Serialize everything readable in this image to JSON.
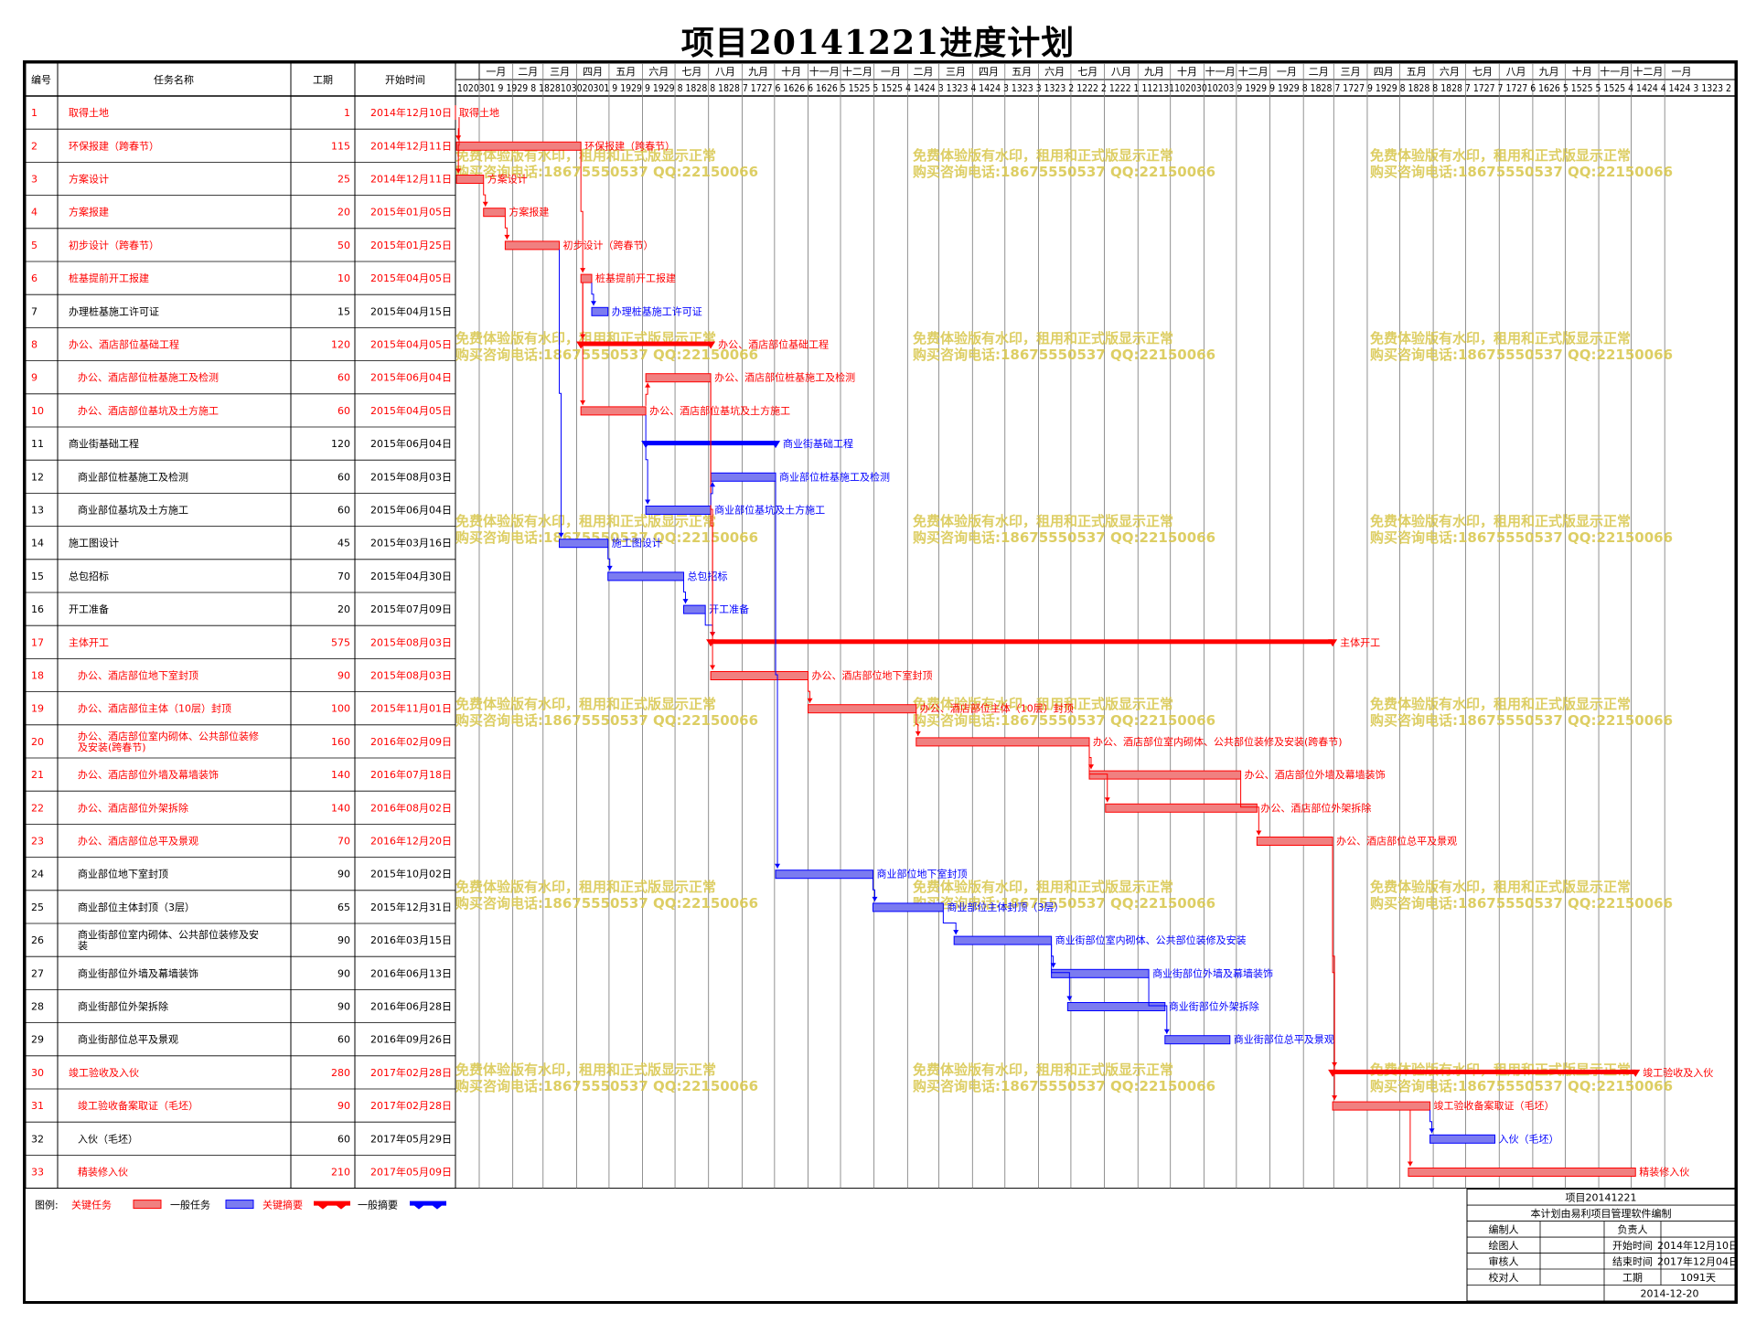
{
  "title": "项目20141221进度计划",
  "columns": {
    "id": "编号",
    "name": "任务名称",
    "duration": "工期",
    "start": "开始时间"
  },
  "timeline": {
    "start_date": "2014-12-10",
    "end_date": "2017-12-04",
    "months": [
      "一月",
      "二月",
      "三月",
      "四月",
      "五月",
      "六月",
      "七月",
      "八月",
      "九月",
      "十月",
      "十一月",
      "十二月",
      "一月",
      "二月",
      "三月",
      "四月",
      "五月",
      "六月",
      "七月",
      "八月",
      "九月",
      "十月",
      "十一月",
      "十二月",
      "一月",
      "二月",
      "三月",
      "四月",
      "五月",
      "六月",
      "七月",
      "八月",
      "九月",
      "十月",
      "十一月",
      "十二月",
      "一月"
    ],
    "day_labels": "1020301 9 1929 8 1828103020301 9 1929 9 1929 8 1828 8 1828 7 1727 6 1626 6 1626 5 1525 5 1525 4 1424 3 1323 4 1424 3 1323 3 1323 2 1222 2 1222 1 11213110203010203 9 1929 9 1929 8 1828 7 1727 9 1929 8 1828 8 1828 7 1727 7 1727 6 1626 5 1525 5 1525 4 1424 4 1424 3 1323 2"
  },
  "tasks": [
    {
      "id": "1",
      "name": "取得土地",
      "duration": "1",
      "start": "2014年12月10日",
      "critical": true,
      "kind": "milestone",
      "label": "取得土地",
      "s": "2014-12-10",
      "e": "2014-12-10"
    },
    {
      "id": "2",
      "name": "环保报建（跨春节）",
      "duration": "115",
      "start": "2014年12月11日",
      "critical": true,
      "kind": "task",
      "label": "环保报建（跨春节）",
      "s": "2014-12-11",
      "e": "2015-04-04"
    },
    {
      "id": "3",
      "name": "方案设计",
      "duration": "25",
      "start": "2014年12月11日",
      "critical": true,
      "kind": "task",
      "label": "方案设计",
      "s": "2014-12-11",
      "e": "2015-01-04"
    },
    {
      "id": "4",
      "name": "方案报建",
      "duration": "20",
      "start": "2015年01月05日",
      "critical": true,
      "kind": "task",
      "label": "方案报建",
      "s": "2015-01-05",
      "e": "2015-01-24"
    },
    {
      "id": "5",
      "name": "初步设计（跨春节）",
      "duration": "50",
      "start": "2015年01月25日",
      "critical": true,
      "kind": "task",
      "label": "初步设计（跨春节）",
      "s": "2015-01-25",
      "e": "2015-03-15"
    },
    {
      "id": "6",
      "name": "桩基提前开工报建",
      "duration": "10",
      "start": "2015年04月05日",
      "critical": true,
      "kind": "task",
      "label": "桩基提前开工报建",
      "s": "2015-04-05",
      "e": "2015-04-14"
    },
    {
      "id": "7",
      "name": "办理桩基施工许可证",
      "duration": "15",
      "start": "2015年04月15日",
      "critical": false,
      "kind": "task",
      "label": "办理桩基施工许可证",
      "s": "2015-04-15",
      "e": "2015-04-29"
    },
    {
      "id": "8",
      "name": "办公、酒店部位基础工程",
      "duration": "120",
      "start": "2015年04月05日",
      "critical": true,
      "kind": "summary",
      "label": "办公、酒店部位基础工程",
      "s": "2015-04-05",
      "e": "2015-08-02"
    },
    {
      "id": "9",
      "name": "办公、酒店部位桩基施工及检测",
      "duration": "60",
      "start": "2015年06月04日",
      "critical": true,
      "kind": "task",
      "label": "办公、酒店部位桩基施工及检测",
      "s": "2015-06-04",
      "e": "2015-08-02",
      "indent": true
    },
    {
      "id": "10",
      "name": "办公、酒店部位基坑及土方施工",
      "duration": "60",
      "start": "2015年04月05日",
      "critical": true,
      "kind": "task",
      "label": "办公、酒店部位基坑及土方施工",
      "s": "2015-04-05",
      "e": "2015-06-03",
      "indent": true
    },
    {
      "id": "11",
      "name": "商业街基础工程",
      "duration": "120",
      "start": "2015年06月04日",
      "critical": false,
      "kind": "summary",
      "label": "商业街基础工程",
      "s": "2015-06-04",
      "e": "2015-10-01"
    },
    {
      "id": "12",
      "name": "商业部位桩基施工及检测",
      "duration": "60",
      "start": "2015年08月03日",
      "critical": false,
      "kind": "task",
      "label": "商业部位桩基施工及检测",
      "s": "2015-08-03",
      "e": "2015-10-01",
      "indent": true
    },
    {
      "id": "13",
      "name": "商业部位基坑及土方施工",
      "duration": "60",
      "start": "2015年06月04日",
      "critical": false,
      "kind": "task",
      "label": "商业部位基坑及土方施工",
      "s": "2015-06-04",
      "e": "2015-08-02",
      "indent": true
    },
    {
      "id": "14",
      "name": "施工图设计",
      "duration": "45",
      "start": "2015年03月16日",
      "critical": false,
      "kind": "task",
      "label": "施工图设计",
      "s": "2015-03-16",
      "e": "2015-04-29"
    },
    {
      "id": "15",
      "name": "总包招标",
      "duration": "70",
      "start": "2015年04月30日",
      "critical": false,
      "kind": "task",
      "label": "总包招标",
      "s": "2015-04-30",
      "e": "2015-07-08"
    },
    {
      "id": "16",
      "name": "开工准备",
      "duration": "20",
      "start": "2015年07月09日",
      "critical": false,
      "kind": "task",
      "label": "开工准备",
      "s": "2015-07-09",
      "e": "2015-07-28"
    },
    {
      "id": "17",
      "name": "主体开工",
      "duration": "575",
      "start": "2015年08月03日",
      "critical": true,
      "kind": "summary",
      "label": "主体开工",
      "s": "2015-08-03",
      "e": "2017-02-27"
    },
    {
      "id": "18",
      "name": "办公、酒店部位地下室封顶",
      "duration": "90",
      "start": "2015年08月03日",
      "critical": true,
      "kind": "task",
      "label": "办公、酒店部位地下室封顶",
      "s": "2015-08-03",
      "e": "2015-10-31",
      "indent": true
    },
    {
      "id": "19",
      "name": "办公、酒店部位主体（10层）封顶",
      "duration": "100",
      "start": "2015年11月01日",
      "critical": true,
      "kind": "task",
      "label": "办公、酒店部位主体（10层）封顶",
      "s": "2015-11-01",
      "e": "2016-02-08",
      "indent": true
    },
    {
      "id": "20",
      "name": "办公、酒店部位室内砌体、公共部位装修及安装(跨春节)",
      "name_l1": "办公、酒店部位室内砌体、公共部位装修",
      "name_l2": "及安装(跨春节)",
      "duration": "160",
      "start": "2016年02月09日",
      "critical": true,
      "kind": "task",
      "label": "办公、酒店部位室内砌体、公共部位装修及安装(跨春节)",
      "s": "2016-02-09",
      "e": "2016-07-17",
      "indent": true
    },
    {
      "id": "21",
      "name": "办公、酒店部位外墙及幕墙装饰",
      "duration": "140",
      "start": "2016年07月18日",
      "critical": true,
      "kind": "task",
      "label": "办公、酒店部位外墙及幕墙装饰",
      "s": "2016-07-18",
      "e": "2016-12-04",
      "indent": true
    },
    {
      "id": "22",
      "name": "办公、酒店部位外架拆除",
      "duration": "140",
      "start": "2016年08月02日",
      "critical": true,
      "kind": "task",
      "label": "办公、酒店部位外架拆除",
      "s": "2016-08-02",
      "e": "2016-12-19",
      "indent": true
    },
    {
      "id": "23",
      "name": "办公、酒店部位总平及景观",
      "duration": "70",
      "start": "2016年12月20日",
      "critical": true,
      "kind": "task",
      "label": "办公、酒店部位总平及景观",
      "s": "2016-12-20",
      "e": "2017-02-27",
      "indent": true
    },
    {
      "id": "24",
      "name": "商业部位地下室封顶",
      "duration": "90",
      "start": "2015年10月02日",
      "critical": false,
      "kind": "task",
      "label": "商业部位地下室封顶",
      "s": "2015-10-02",
      "e": "2015-12-30",
      "indent": true
    },
    {
      "id": "25",
      "name": "商业部位主体封顶（3层）",
      "duration": "65",
      "start": "2015年12月31日",
      "critical": false,
      "kind": "task",
      "label": "商业部位主体封顶（3层）",
      "s": "2015-12-31",
      "e": "2016-03-04",
      "indent": true
    },
    {
      "id": "26",
      "name": "商业街部位室内砌体、公共部位装修及安装",
      "name_l1": "商业街部位室内砌体、公共部位装修及安",
      "name_l2": "装",
      "duration": "90",
      "start": "2016年03月15日",
      "critical": false,
      "kind": "task",
      "label": "商业街部位室内砌体、公共部位装修及安装",
      "s": "2016-03-15",
      "e": "2016-06-12",
      "indent": true
    },
    {
      "id": "27",
      "name": "商业街部位外墙及幕墙装饰",
      "duration": "90",
      "start": "2016年06月13日",
      "critical": false,
      "kind": "task",
      "label": "商业街部位外墙及幕墙装饰",
      "s": "2016-06-13",
      "e": "2016-09-10",
      "indent": true
    },
    {
      "id": "28",
      "name": "商业街部位外架拆除",
      "duration": "90",
      "start": "2016年06月28日",
      "critical": false,
      "kind": "task",
      "label": "商业街部位外架拆除",
      "s": "2016-06-28",
      "e": "2016-09-25",
      "indent": true
    },
    {
      "id": "29",
      "name": "商业街部位总平及景观",
      "duration": "60",
      "start": "2016年09月26日",
      "critical": false,
      "kind": "task",
      "label": "商业街部位总平及景观",
      "s": "2016-09-26",
      "e": "2016-11-24",
      "indent": true
    },
    {
      "id": "30",
      "name": "竣工验收及入伙",
      "duration": "280",
      "start": "2017年02月28日",
      "critical": true,
      "kind": "summary",
      "label": "竣工验收及入伙",
      "s": "2017-02-28",
      "e": "2017-12-04"
    },
    {
      "id": "31",
      "name": "竣工验收备案取证（毛坯）",
      "duration": "90",
      "start": "2017年02月28日",
      "critical": true,
      "kind": "task",
      "label": "竣工验收备案取证（毛坯）",
      "s": "2017-02-28",
      "e": "2017-05-28",
      "indent": true
    },
    {
      "id": "32",
      "name": "入伙（毛坯）",
      "duration": "60",
      "start": "2017年05月29日",
      "critical": false,
      "kind": "task",
      "label": "入伙（毛坯）",
      "s": "2017-05-29",
      "e": "2017-07-27",
      "indent": true
    },
    {
      "id": "33",
      "name": "精装修入伙",
      "duration": "210",
      "start": "2017年05月09日",
      "critical": true,
      "kind": "task",
      "label": "精装修入伙",
      "s": "2017-05-09",
      "e": "2017-12-04",
      "indent": true
    }
  ],
  "links": [
    [
      1,
      2
    ],
    [
      1,
      3
    ],
    [
      3,
      4
    ],
    [
      4,
      5
    ],
    [
      2,
      6
    ],
    [
      6,
      7
    ],
    [
      5,
      14
    ],
    [
      6,
      8
    ],
    [
      6,
      10
    ],
    [
      10,
      9
    ],
    [
      10,
      13
    ],
    [
      14,
      15
    ],
    [
      15,
      16
    ],
    [
      16,
      17
    ],
    [
      9,
      17
    ],
    [
      9,
      18
    ],
    [
      18,
      19
    ],
    [
      19,
      20
    ],
    [
      20,
      21
    ],
    [
      20,
      22
    ],
    [
      21,
      23
    ],
    [
      13,
      12
    ],
    [
      12,
      24
    ],
    [
      24,
      25
    ],
    [
      25,
      26
    ],
    [
      26,
      27
    ],
    [
      26,
      28
    ],
    [
      27,
      29
    ],
    [
      23,
      30
    ],
    [
      23,
      31
    ],
    [
      31,
      32
    ],
    [
      31,
      33
    ]
  ],
  "watermark": {
    "line1": "免费体验版有水印，租用和正式版显示正常",
    "line2": "购买咨询电话:18675550537 QQ:22150066"
  },
  "legend": {
    "title": "图例:",
    "critical_task": "关键任务",
    "general_task": "一般任务",
    "critical_summary": "关键摘要",
    "general_summary": "一般摘要"
  },
  "info_box": {
    "project": "项目20141221",
    "software": "本计划由易利项目管理软件编制",
    "editor_label": "编制人",
    "editor": "",
    "owner_label": "负责人",
    "owner": "",
    "drawer_label": "绘图人",
    "drawer": "",
    "start_label": "开始时间",
    "start": "2014年12月10日",
    "reviewer_label": "审核人",
    "reviewer": "",
    "end_label": "结束时间",
    "end": "2017年12月04日",
    "checker_label": "校对人",
    "checker": "",
    "duration_label": "工期",
    "duration": "1091天",
    "date": "2014-12-20"
  },
  "colors": {
    "critical": "#ff0000",
    "critical_fill": "#f08080",
    "normal": "#0000ff",
    "normal_fill": "#7b7bf0",
    "watermark": "#d8c64a"
  }
}
